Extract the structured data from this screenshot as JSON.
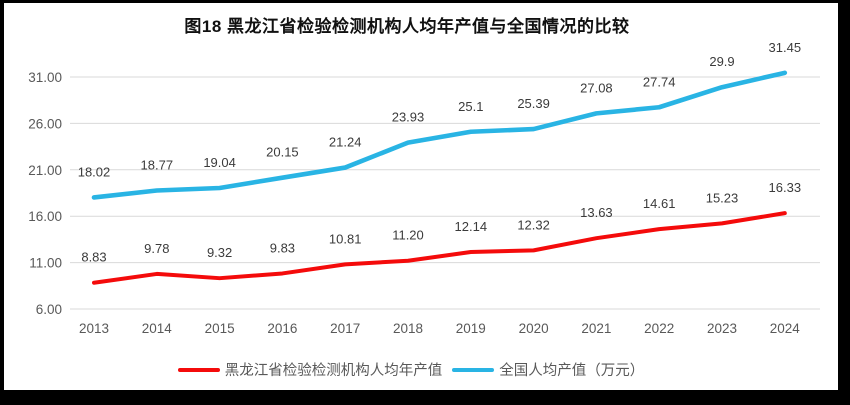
{
  "window": {
    "frame_color": "#000000",
    "canvas_color": "#ffffff"
  },
  "title": "图18 黑龙江省检验检测机构人均年产值与全国情况的比较",
  "chart_data": {
    "type": "line",
    "title": "图18 黑龙江省检验检测机构人均年产值与全国情况的比较",
    "categories": [
      "2013",
      "2014",
      "2015",
      "2016",
      "2017",
      "2018",
      "2019",
      "2020",
      "2021",
      "2022",
      "2023",
      "2024"
    ],
    "series": [
      {
        "name": "黑龙江省检验检测机构人均年产值",
        "color": "#F40B0B",
        "values": [
          8.83,
          9.78,
          9.32,
          9.83,
          10.81,
          11.2,
          12.14,
          12.32,
          13.63,
          14.61,
          15.23,
          16.33
        ],
        "labels": [
          "8.83",
          "9.78",
          "9.32",
          "9.83",
          "10.81",
          "11.20",
          "12.14",
          "12.32",
          "13.63",
          "14.61",
          "15.23",
          "16.33"
        ]
      },
      {
        "name": "全国人均产值（万元）",
        "color": "#29B4E4",
        "values": [
          18.02,
          18.77,
          19.04,
          20.15,
          21.24,
          23.93,
          25.1,
          25.39,
          27.08,
          27.74,
          29.9,
          31.45
        ],
        "labels": [
          "18.02",
          "18.77",
          "19.04",
          "20.15",
          "21.24",
          "23.93",
          "25.1",
          "25.39",
          "27.08",
          "27.74",
          "29.9",
          "31.45"
        ]
      }
    ],
    "y_ticks": [
      "6.00",
      "11.00",
      "16.00",
      "21.00",
      "26.00",
      "31.00"
    ],
    "ylim": [
      6,
      31
    ],
    "grid": true,
    "legend_position": "bottom",
    "gridline_color": "#D9D9D9",
    "axis_label_color": "#595959",
    "data_label_color": "#3B3B3B"
  }
}
